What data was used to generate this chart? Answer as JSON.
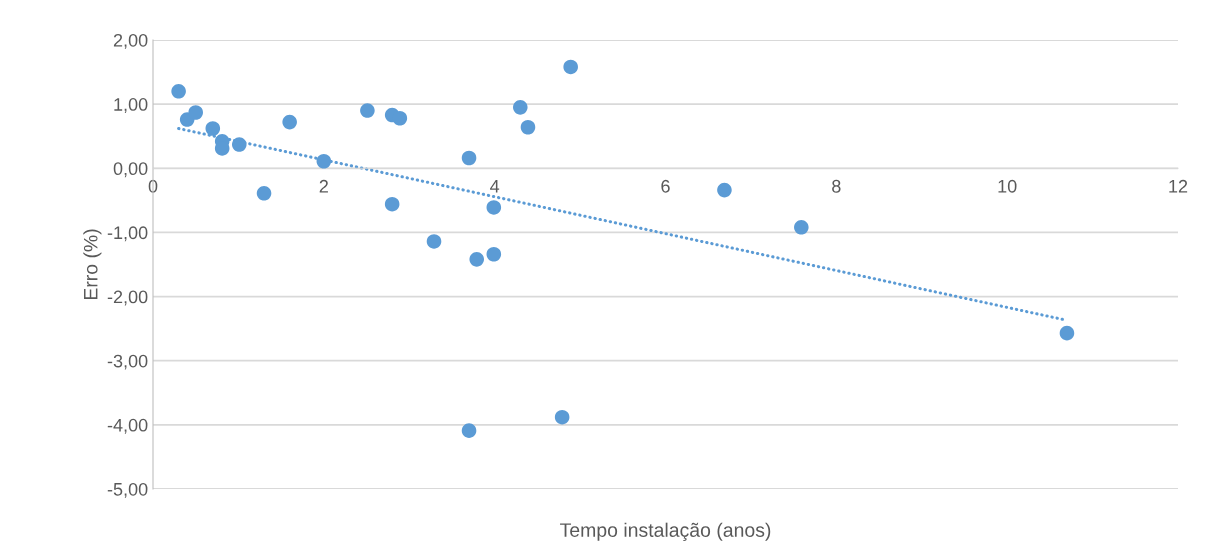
{
  "chart_data": {
    "type": "scatter",
    "xlabel": "Tempo instalação (anos)",
    "ylabel": "Erro (%)",
    "xlim": [
      0,
      12
    ],
    "xticks": [
      0,
      2,
      4,
      6,
      8,
      10,
      12
    ],
    "ylim": [
      -5,
      2
    ],
    "yticks": [
      {
        "value": -5,
        "label": "-5,00"
      },
      {
        "value": -4,
        "label": "-4,00"
      },
      {
        "value": -3,
        "label": "-3,00"
      },
      {
        "value": -2,
        "label": "-2,00"
      },
      {
        "value": -1,
        "label": "-1,00"
      },
      {
        "value": 0,
        "label": "0,00"
      },
      {
        "value": 1,
        "label": "1,00"
      },
      {
        "value": 2,
        "label": "2,00"
      }
    ],
    "grid": "y",
    "series": [
      {
        "marker": "circle",
        "color": "#5b9bd5",
        "x": [
          0.3,
          0.4,
          0.5,
          0.7,
          0.81,
          0.81,
          1.01,
          1.3,
          1.6,
          2.0,
          2.51,
          2.8,
          2.8,
          2.89,
          3.29,
          3.7,
          3.7,
          3.79,
          3.99,
          3.99,
          4.3,
          4.39,
          4.79,
          4.89,
          6.69,
          7.59,
          10.7
        ],
        "values": [
          1.2,
          0.76,
          0.87,
          0.62,
          0.42,
          0.31,
          0.37,
          -0.39,
          0.72,
          0.11,
          0.9,
          0.83,
          -0.56,
          0.78,
          -1.14,
          0.16,
          -4.09,
          -1.42,
          -0.61,
          -1.34,
          0.95,
          0.64,
          -3.88,
          1.58,
          -0.34,
          -0.92,
          -2.57
        ]
      },
      {
        "type": "line",
        "color": "#5b9bd5",
        "line_style": "dotted",
        "x": [
          0.3,
          10.7
        ],
        "values": [
          0.62,
          -2.37
        ]
      }
    ]
  }
}
